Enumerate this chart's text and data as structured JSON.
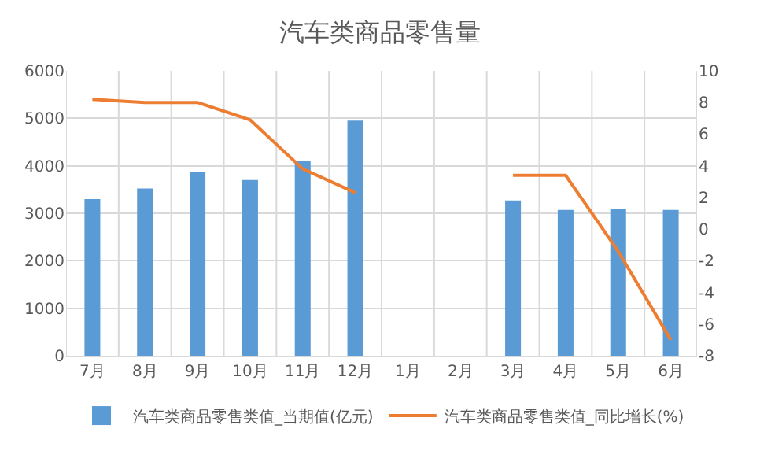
{
  "chart_data": {
    "type": "bar",
    "title": "汽车类商品零售量",
    "categories": [
      "7月",
      "8月",
      "9月",
      "10月",
      "11月",
      "12月",
      "1月",
      "2月",
      "3月",
      "4月",
      "5月",
      "6月"
    ],
    "series": [
      {
        "name": "汽车类商品零售类值_当期值(亿元)",
        "color": "#5b9bd5",
        "values": [
          3300,
          3520,
          3880,
          3700,
          4100,
          4950,
          null,
          null,
          3270,
          3070,
          3100,
          3070
        ]
      },
      {
        "name": "汽车类商品零售类值_同比增长(%)",
        "type": "line",
        "axis": "y2",
        "color": "#ed7d31",
        "values": [
          8.2,
          8.0,
          8.0,
          6.9,
          3.8,
          2.3,
          null,
          null,
          3.4,
          3.4,
          -1.4,
          -7.0
        ]
      }
    ],
    "ylim": [
      0,
      6000
    ],
    "yticks": [
      0,
      1000,
      2000,
      3000,
      4000,
      5000,
      6000
    ],
    "y2lim": [
      -8,
      10
    ],
    "y2ticks": [
      -8,
      -6,
      -4,
      -2,
      0,
      2,
      4,
      6,
      8,
      10
    ],
    "grid": true,
    "legend": "bottom",
    "marker": "none"
  }
}
